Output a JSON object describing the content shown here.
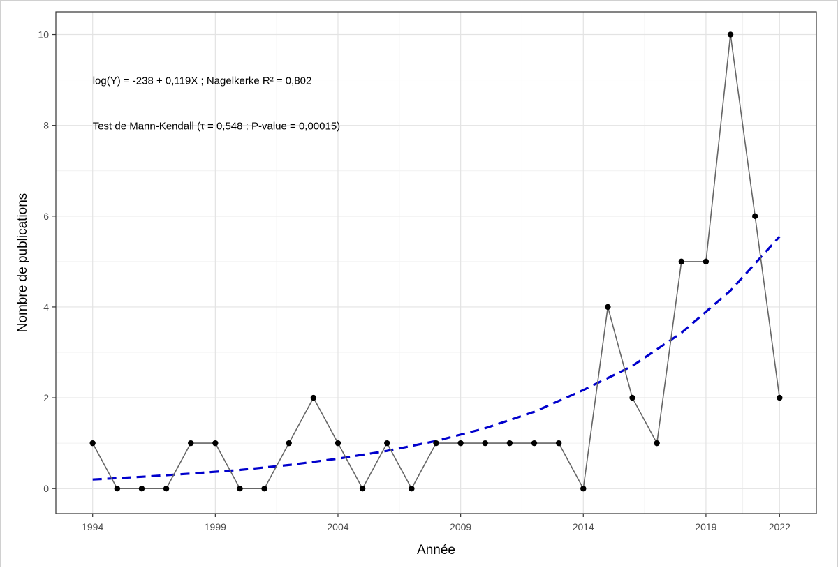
{
  "chart_data": {
    "type": "line",
    "xlabel": "Année",
    "ylabel": "Nombre de publications",
    "xlim": [
      1992.5,
      2023.5
    ],
    "ylim": [
      -0.55,
      10.5
    ],
    "x_ticks": [
      1994,
      1999,
      2004,
      2009,
      2014,
      2019,
      2022
    ],
    "x_tick_labels": [
      "1994",
      "1999",
      "2004",
      "2009",
      "2014",
      "2019",
      "2022"
    ],
    "y_ticks": [
      0,
      2,
      4,
      6,
      8,
      10
    ],
    "y_tick_labels": [
      "0",
      "2",
      "4",
      "6",
      "8",
      "10"
    ],
    "x_minor_ticks": [
      1996.5,
      2001.5,
      2006.5,
      2011.5,
      2016.5,
      2020.5
    ],
    "y_minor_ticks": [
      1,
      3,
      5,
      7,
      9
    ],
    "grid": true,
    "background": "white with grey panel border",
    "series": [
      {
        "kind": "observed",
        "style": "grey line with black points",
        "line_color": "#666666",
        "point_color": "#000000",
        "x": [
          1994,
          1995,
          1996,
          1997,
          1998,
          1999,
          2000,
          2001,
          2002,
          2003,
          2004,
          2005,
          2006,
          2007,
          2008,
          2009,
          2010,
          2011,
          2012,
          2013,
          2014,
          2015,
          2016,
          2017,
          2018,
          2019,
          2020,
          2021,
          2022
        ],
        "y": [
          1,
          0,
          0,
          0,
          1,
          1,
          0,
          0,
          1,
          2,
          1,
          0,
          1,
          0,
          1,
          1,
          1,
          1,
          1,
          1,
          0,
          4,
          2,
          1,
          5,
          5,
          10,
          6,
          2
        ]
      },
      {
        "kind": "fitted",
        "style": "blue dashed curve",
        "color": "#0000cc",
        "model": "exponential",
        "x": [
          1994,
          1996,
          1998,
          2000,
          2002,
          2004,
          2006,
          2008,
          2010,
          2012,
          2014,
          2016,
          2018,
          2020,
          2022
        ],
        "y": [
          0.2,
          0.26,
          0.33,
          0.41,
          0.52,
          0.66,
          0.83,
          1.05,
          1.33,
          1.69,
          2.17,
          2.7,
          3.43,
          4.36,
          5.55
        ]
      }
    ],
    "annotations": [
      "log(Y) = -238 + 0,119X ;  Nagelkerke R² = 0,802",
      "Test de Mann-Kendall (τ = 0,548 ; P-value = 0,00015)"
    ]
  }
}
